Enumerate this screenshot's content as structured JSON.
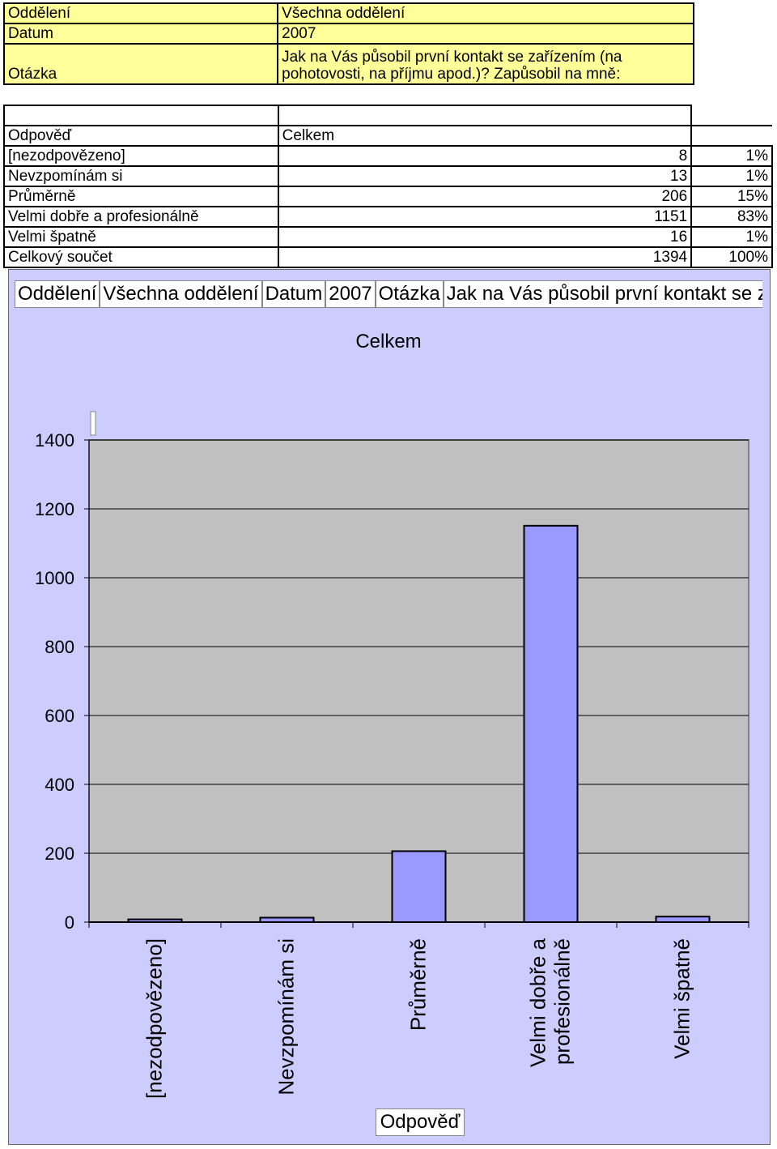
{
  "header": {
    "rows": [
      {
        "label": "Oddělení",
        "value": "Všechna oddělení"
      },
      {
        "label": "Datum",
        "value": "2007"
      },
      {
        "label": "Otázka",
        "value": "Jak na Vás působil první kontakt se zařízením (na pohotovosti, na příjmu apod.)? Zapůsobil na mně:"
      }
    ]
  },
  "results": {
    "header_label": "Odpověď",
    "header_value": "Celkem",
    "rows": [
      {
        "label": "[nezodpovězeno]",
        "count": "8",
        "pct": "1%"
      },
      {
        "label": "Nevzpomínám si",
        "count": "13",
        "pct": "1%"
      },
      {
        "label": "Průměrně",
        "count": "206",
        "pct": "15%"
      },
      {
        "label": "Velmi dobře a profesionálně",
        "count": "1151",
        "pct": "83%"
      },
      {
        "label": "Velmi špatně",
        "count": "16",
        "pct": "1%"
      },
      {
        "label": "Celkový součet",
        "count": "1394",
        "pct": "100%"
      }
    ]
  },
  "chart_fields": {
    "f1": "Oddělení",
    "f2": "Všechna oddělení",
    "f3": "Datum",
    "f4": "2007",
    "f5": "Otázka",
    "f6": "Jak na Vás působil první kontakt se zařízením (na pohotovosti, na příjmu apod.)? Zapůsobil na mně:"
  },
  "chart_data": {
    "type": "bar",
    "title": "Celkem",
    "xlabel": "Odpověď",
    "ylabel": "",
    "categories": [
      "[nezodpovězeno]",
      "Nevzpomínám si",
      "Průměrně",
      "Velmi dobře a profesionálně",
      "Velmi špatně"
    ],
    "category_lines": [
      [
        "[nezodpovězeno]"
      ],
      [
        "Nevzpomínám si"
      ],
      [
        "Průměrně"
      ],
      [
        "Velmi dobře a",
        "profesionálně"
      ],
      [
        "Velmi špatně"
      ]
    ],
    "values": [
      8,
      13,
      206,
      1151,
      16
    ],
    "ylim": [
      0,
      1400
    ],
    "yticks": [
      0,
      200,
      400,
      600,
      800,
      1000,
      1200,
      1400
    ],
    "grid": true,
    "legend": "none",
    "colors": {
      "bar": "#9999ff",
      "plot_bg": "#c0c0c0",
      "chart_bg": "#ccccff",
      "grid": "#000000"
    }
  }
}
